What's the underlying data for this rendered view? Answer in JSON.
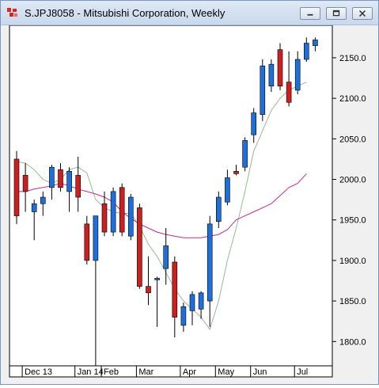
{
  "window": {
    "title": "S.JPJ8058 - Mitsubishi Corporation, Weekly",
    "icon": "chart-app-icon",
    "buttons": [
      {
        "name": "minimize-button",
        "icon": "minimize-icon"
      },
      {
        "name": "restore-button",
        "icon": "restore-icon"
      },
      {
        "name": "close-button",
        "icon": "close-icon"
      }
    ]
  },
  "colors": {
    "up": "#1e6fd9",
    "down": "#cc1f1f",
    "ma_short": "#9ab89a",
    "ma_long": "#d0288a",
    "grid_bg": "#ffffff"
  },
  "chart_data": {
    "type": "candlestick",
    "ylim": [
      1770,
      2190
    ],
    "y_ticks": [
      "2150.0",
      "2100.0",
      "2050.0",
      "2000.0",
      "1950.0",
      "1900.0",
      "1850.0",
      "1800.0"
    ],
    "y_tick_values": [
      2150,
      2100,
      2050,
      2000,
      1950,
      1900,
      1850,
      1800
    ],
    "x_labels": [
      {
        "label": "Dec 13",
        "index": 1
      },
      {
        "label": "Jan 14",
        "index": 7
      },
      {
        "label": "Feb",
        "index": 10
      },
      {
        "label": "Mar",
        "index": 14
      },
      {
        "label": "Apr",
        "index": 19
      },
      {
        "label": "May",
        "index": 23
      },
      {
        "label": "Jun",
        "index": 27
      },
      {
        "label": "Jul",
        "index": 32
      }
    ],
    "candles": [
      {
        "o": 2025,
        "h": 2035,
        "l": 1945,
        "c": 1955
      },
      {
        "o": 2005,
        "h": 2020,
        "l": 1960,
        "c": 1985
      },
      {
        "o": 1960,
        "h": 1975,
        "l": 1925,
        "c": 1970
      },
      {
        "o": 1970,
        "h": 1985,
        "l": 1955,
        "c": 1978
      },
      {
        "o": 1990,
        "h": 2018,
        "l": 1975,
        "c": 2015
      },
      {
        "o": 2012,
        "h": 2020,
        "l": 1985,
        "c": 1990
      },
      {
        "o": 1985,
        "h": 2015,
        "l": 1960,
        "c": 2010
      },
      {
        "o": 2005,
        "h": 2028,
        "l": 1960,
        "c": 1978
      },
      {
        "o": 1945,
        "h": 1955,
        "l": 1895,
        "c": 1900
      },
      {
        "o": 1900,
        "h": 1955,
        "l": 1768,
        "c": 1955
      },
      {
        "o": 1970,
        "h": 1985,
        "l": 1930,
        "c": 1935
      },
      {
        "o": 1935,
        "h": 1990,
        "l": 1930,
        "c": 1985
      },
      {
        "o": 1990,
        "h": 1995,
        "l": 1930,
        "c": 1935
      },
      {
        "o": 1930,
        "h": 1982,
        "l": 1925,
        "c": 1978
      },
      {
        "o": 1965,
        "h": 1970,
        "l": 1865,
        "c": 1868
      },
      {
        "o": 1868,
        "h": 1905,
        "l": 1845,
        "c": 1860
      },
      {
        "o": 1878,
        "h": 1880,
        "l": 1818,
        "c": 1878
      },
      {
        "o": 1890,
        "h": 1940,
        "l": 1870,
        "c": 1918
      },
      {
        "o": 1898,
        "h": 1905,
        "l": 1805,
        "c": 1830
      },
      {
        "o": 1820,
        "h": 1848,
        "l": 1812,
        "c": 1843
      },
      {
        "o": 1838,
        "h": 1862,
        "l": 1820,
        "c": 1858
      },
      {
        "o": 1840,
        "h": 1862,
        "l": 1828,
        "c": 1860
      },
      {
        "o": 1850,
        "h": 1955,
        "l": 1818,
        "c": 1945
      },
      {
        "o": 1948,
        "h": 1985,
        "l": 1940,
        "c": 1978
      },
      {
        "o": 1972,
        "h": 2012,
        "l": 1968,
        "c": 2002
      },
      {
        "o": 2010,
        "h": 2018,
        "l": 2005,
        "c": 2007
      },
      {
        "o": 2015,
        "h": 2052,
        "l": 2010,
        "c": 2048
      },
      {
        "o": 2055,
        "h": 2088,
        "l": 2045,
        "c": 2082
      },
      {
        "o": 2080,
        "h": 2148,
        "l": 2072,
        "c": 2140
      },
      {
        "o": 2115,
        "h": 2148,
        "l": 2108,
        "c": 2142
      },
      {
        "o": 2160,
        "h": 2168,
        "l": 2110,
        "c": 2115
      },
      {
        "o": 2120,
        "h": 2158,
        "l": 2090,
        "c": 2095
      },
      {
        "o": 2110,
        "h": 2158,
        "l": 2105,
        "c": 2148
      },
      {
        "o": 2148,
        "h": 2175,
        "l": 2145,
        "c": 2168
      },
      {
        "o": 2165,
        "h": 2175,
        "l": 2158,
        "c": 2172
      }
    ],
    "ma_short": [
      2022,
      2020,
      2012,
      2000,
      1995,
      2000,
      2012,
      2015,
      2008,
      1975,
      1965,
      1960,
      1958,
      1958,
      1942,
      1920,
      1905,
      1885,
      1865,
      1850,
      1840,
      1830,
      1815,
      1850,
      1900,
      1940,
      1985,
      2035,
      2060,
      2085,
      2100,
      2110,
      2115,
      2120
    ],
    "ma_long": [
      1985,
      1985,
      1988,
      1990,
      1992,
      1995,
      1992,
      1988,
      1985,
      1982,
      1978,
      1972,
      1960,
      1952,
      1945,
      1940,
      1935,
      1932,
      1930,
      1928,
      1928,
      1928,
      1930,
      1932,
      1938,
      1950,
      1955,
      1960,
      1965,
      1970,
      1980,
      1990,
      1995,
      2007
    ]
  }
}
